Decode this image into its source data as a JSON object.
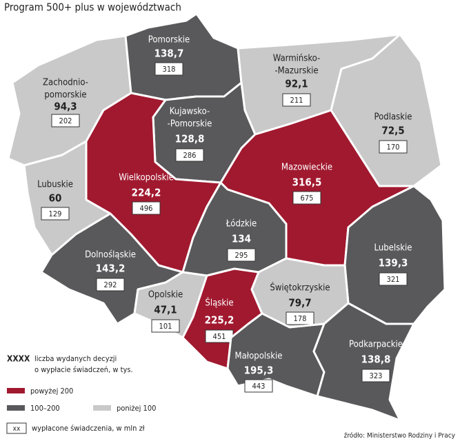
{
  "title": "Program 500+ plus w województwach",
  "regions": [
    {
      "name": [
        "Zachodnio-",
        "pomorskie"
      ],
      "value": "94,3",
      "count": 202,
      "color": "#c9c9c9"
    },
    {
      "name": [
        "Pomorskie"
      ],
      "value": "138,7",
      "count": 318,
      "color": "#59595b"
    },
    {
      "name": [
        "Warmińsko-",
        "-Mazurskie"
      ],
      "value": "92,1",
      "count": 211,
      "color": "#c9c9c9"
    },
    {
      "name": [
        "Podlaskie"
      ],
      "value": "72,5",
      "count": 170,
      "color": "#c9c9c9"
    },
    {
      "name": [
        "Kujawsko-",
        "-Pomorskie"
      ],
      "value": "128,8",
      "count": 286,
      "color": "#59595b"
    },
    {
      "name": [
        "Wielkopolskie"
      ],
      "value": "224,2",
      "count": 496,
      "color": "#a1192f"
    },
    {
      "name": [
        "Lubuskie"
      ],
      "value": "60",
      "count": 129,
      "color": "#c9c9c9"
    },
    {
      "name": [
        "Mazowieckie"
      ],
      "value": "316,5",
      "count": 675,
      "color": "#a1192f"
    },
    {
      "name": [
        "Łódzkie"
      ],
      "value": "134",
      "count": 295,
      "color": "#59595b"
    },
    {
      "name": [
        "Lubelskie"
      ],
      "value": "139,3",
      "count": 321,
      "color": "#59595b"
    },
    {
      "name": [
        "Dolnośląskie"
      ],
      "value": "143,2",
      "count": 292,
      "color": "#59595b"
    },
    {
      "name": [
        "Opolskie"
      ],
      "value": "47,1",
      "count": 101,
      "color": "#c9c9c9"
    },
    {
      "name": [
        "Śląskie"
      ],
      "value": "225,2",
      "count": 451,
      "color": "#a1192f"
    },
    {
      "name": [
        "Świętokrzyskie"
      ],
      "value": "79,7",
      "count": 178,
      "color": "#c9c9c9"
    },
    {
      "name": [
        "Małopolskie"
      ],
      "value": "195,3",
      "count": 443,
      "color": "#59595b"
    },
    {
      "name": [
        "Podkarpackie"
      ],
      "value": "138,8",
      "count": 323,
      "color": "#59595b"
    }
  ],
  "legend": {
    "key_label": "XXXX",
    "key_text": [
      "liczba wydanych decyzji",
      "o wypłacie świadczeń, w tys."
    ],
    "items": [
      {
        "label": "powyżej 200",
        "color": "#a1192f"
      },
      {
        "label": "100–200",
        "color": "#59595b"
      },
      {
        "label": "poniżej 100",
        "color": "#c9c9c9"
      }
    ],
    "box_label": "xx",
    "box_text": "wypłacone świadczenia, w mln zł"
  },
  "source": "źródło: Ministerstwo Rodziny i Pracy"
}
